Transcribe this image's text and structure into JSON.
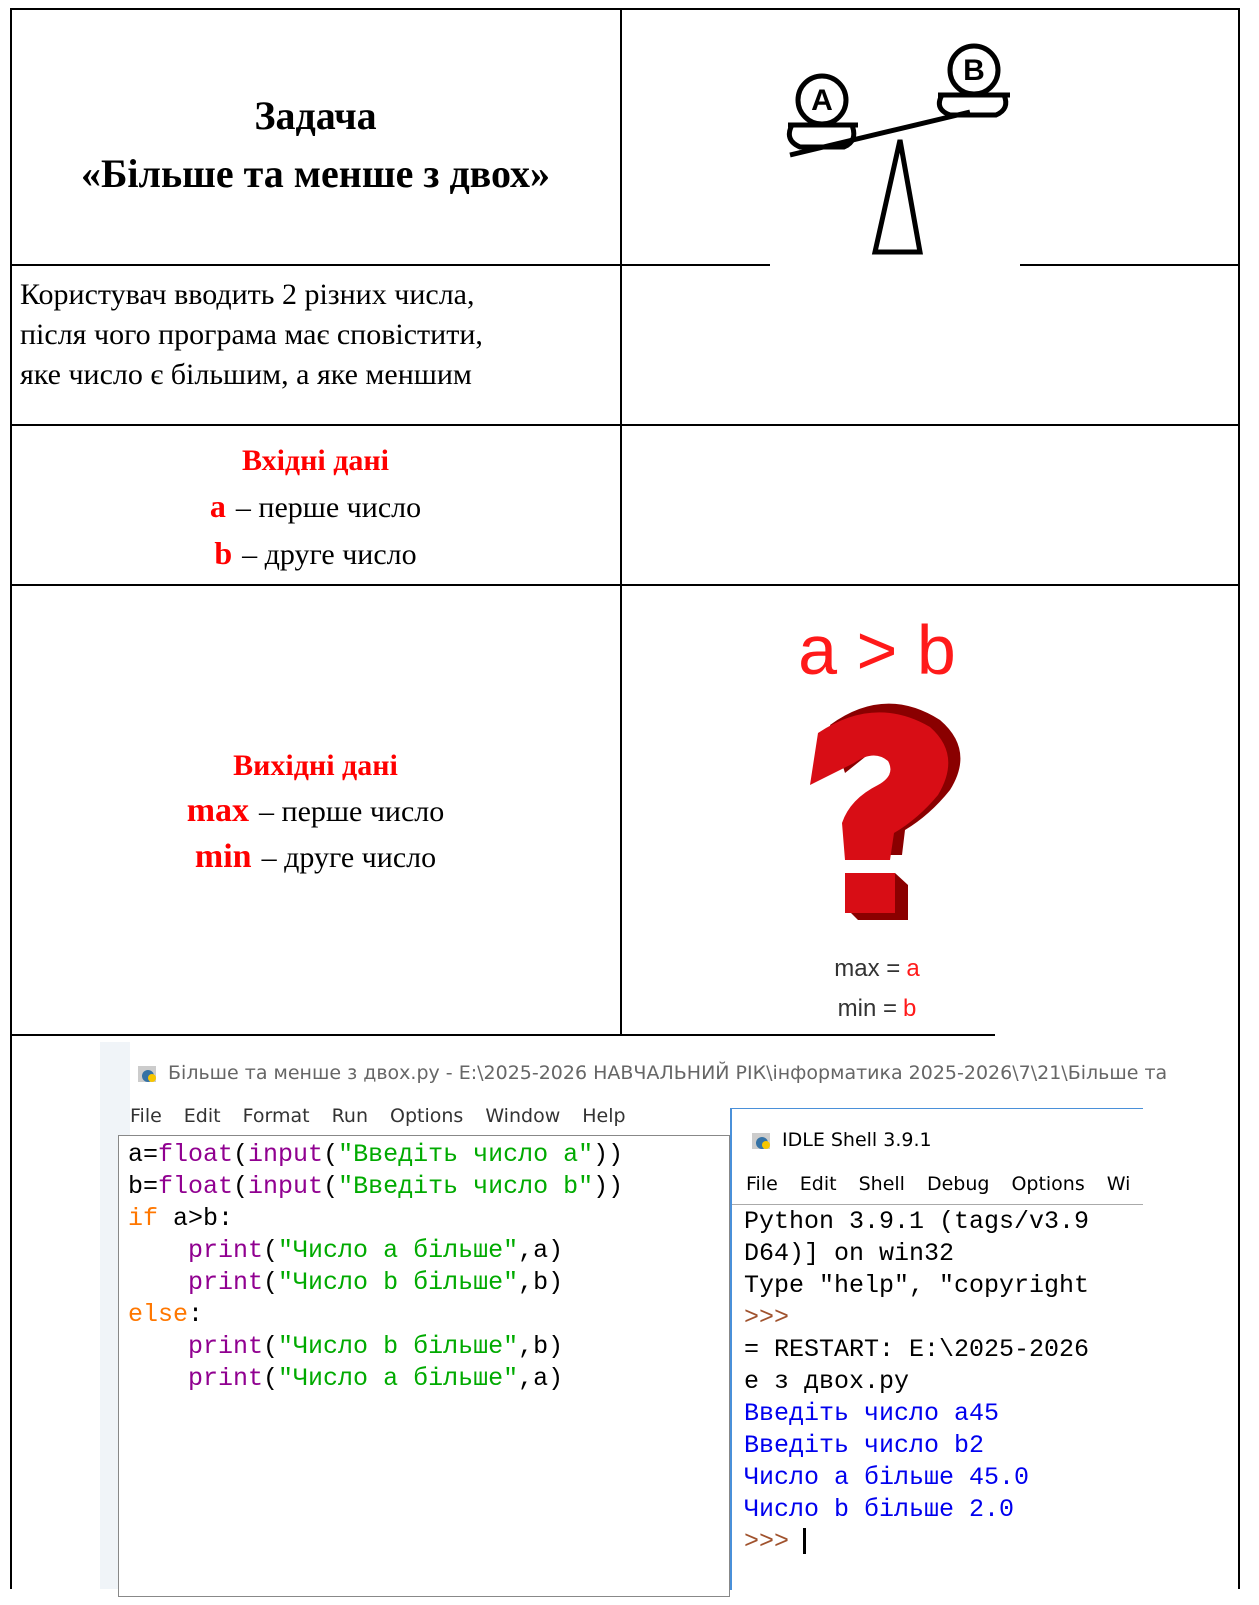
{
  "header": {
    "title_line1": "Задача",
    "title_line2": "«Більше та менше з двох»",
    "icon_labels": [
      "A",
      "B"
    ]
  },
  "description": [
    "Користувач вводить 2 різних числа,",
    "після чого програма має сповістити,",
    "яке число є більшим, а яке меншим"
  ],
  "input": {
    "heading": "Вхідні дані",
    "items": [
      {
        "name": "a",
        "text": "– перше число"
      },
      {
        "name": "b",
        "text": "– друге число"
      }
    ]
  },
  "output": {
    "heading": "Вихідні дані",
    "items": [
      {
        "name": "max",
        "text": "– перше число"
      },
      {
        "name": "min",
        "text": "– друге число"
      }
    ]
  },
  "illustration": {
    "condition": "a > b",
    "result": [
      {
        "label": "max =",
        "var": "a"
      },
      {
        "label": "min =",
        "var": "b"
      }
    ]
  },
  "editor": {
    "title": "Більше та менше з двох.py - E:\\2025-2026 НАВЧАЛЬНИЙ РІК\\інформатика 2025-2026\\7\\21\\Більше та",
    "menu": [
      "File",
      "Edit",
      "Format",
      "Run",
      "Options",
      "Window",
      "Help"
    ],
    "code": [
      "a=float(input(\"Введіть число a\"))",
      "b=float(input(\"Введіть число b\"))",
      "if a>b:",
      "    print(\"Число a більше\",a)",
      "    print(\"Число b більше\",b)",
      "else:",
      "    print(\"Число b більше\",b)",
      "    print(\"Число a більше\",a)"
    ]
  },
  "shell": {
    "title": "IDLE Shell 3.9.1",
    "menu": [
      "File",
      "Edit",
      "Shell",
      "Debug",
      "Options",
      "Wi"
    ],
    "lines": [
      "Python 3.9.1 (tags/v3.9",
      "D64)] on win32",
      "Type \"help\", \"copyright",
      ">>>",
      "= RESTART: E:\\2025-2026",
      "е з двох.py"
    ],
    "output": [
      "Введіть число a45",
      "Введіть число b2",
      "Число a більше 45.0",
      "Число b більше 2.0"
    ],
    "prompt": ">>>"
  }
}
